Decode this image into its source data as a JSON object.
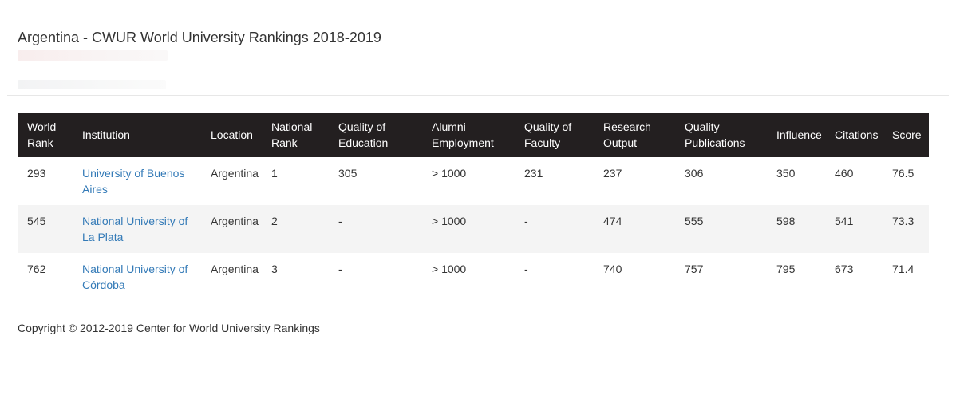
{
  "page": {
    "title": "Argentina - CWUR World University Rankings 2018-2019",
    "footer": "Copyright © 2012-2019 Center for World University Rankings"
  },
  "table": {
    "columns": [
      {
        "key": "world_rank",
        "label": "World Rank"
      },
      {
        "key": "institution",
        "label": "Institution"
      },
      {
        "key": "location",
        "label": "Location"
      },
      {
        "key": "national_rank",
        "label": "National Rank"
      },
      {
        "key": "quality_of_education",
        "label": "Quality of Education"
      },
      {
        "key": "alumni_employment",
        "label": "Alumni Employment"
      },
      {
        "key": "quality_of_faculty",
        "label": "Quality of Faculty"
      },
      {
        "key": "research_output",
        "label": "Research Output"
      },
      {
        "key": "quality_publications",
        "label": "Quality Publications"
      },
      {
        "key": "influence",
        "label": "Influence"
      },
      {
        "key": "citations",
        "label": "Citations"
      },
      {
        "key": "score",
        "label": "Score"
      }
    ],
    "rows": [
      {
        "world_rank": "293",
        "institution": "University of Buenos Aires",
        "location": "Argentina",
        "national_rank": "1",
        "quality_of_education": "305",
        "alumni_employment": "> 1000",
        "quality_of_faculty": "231",
        "research_output": "237",
        "quality_publications": "306",
        "influence": "350",
        "citations": "460",
        "score": "76.5"
      },
      {
        "world_rank": "545",
        "institution": "National University of La Plata",
        "location": "Argentina",
        "national_rank": "2",
        "quality_of_education": "-",
        "alumni_employment": "> 1000",
        "quality_of_faculty": "-",
        "research_output": "474",
        "quality_publications": "555",
        "influence": "598",
        "citations": "541",
        "score": "73.3"
      },
      {
        "world_rank": "762",
        "institution": "National University of Córdoba",
        "location": "Argentina",
        "national_rank": "3",
        "quality_of_education": "-",
        "alumni_employment": "> 1000",
        "quality_of_faculty": "-",
        "research_output": "740",
        "quality_publications": "757",
        "influence": "795",
        "citations": "673",
        "score": "71.4"
      }
    ]
  },
  "colors": {
    "header_bg": "#231f20",
    "header_text": "#ffffff",
    "link": "#337ab7",
    "stripe": "#f4f4f4",
    "text": "#333333"
  }
}
